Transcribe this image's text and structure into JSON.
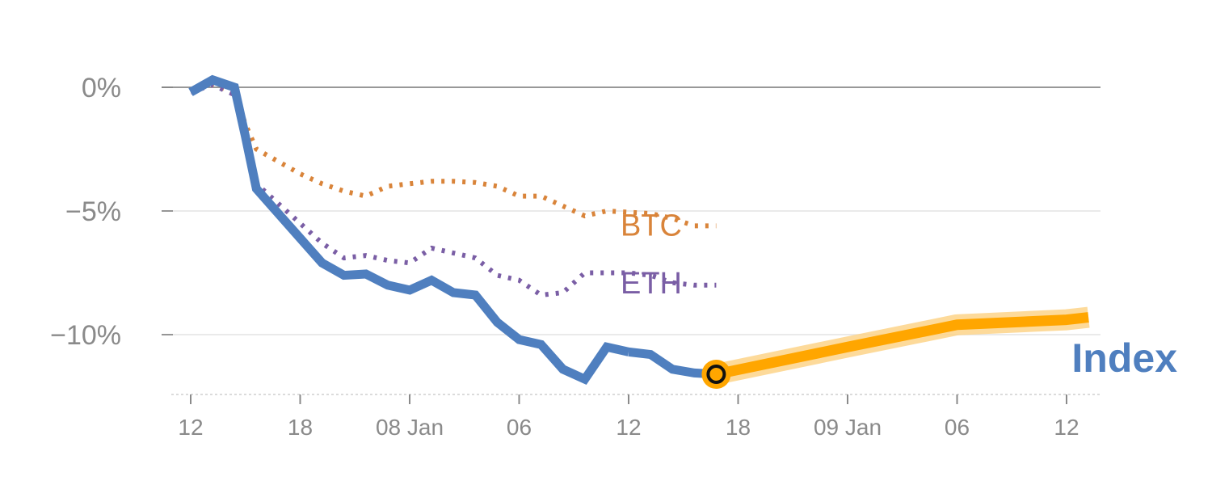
{
  "chart_data": {
    "type": "line",
    "title": "",
    "xlabel": "",
    "ylabel": "",
    "x_ticks": [
      "12",
      "18",
      "08 Jan",
      "06",
      "12",
      "18",
      "09 Jan",
      "06",
      "12"
    ],
    "x_range": [
      -0.12,
      4.8
    ],
    "y_ticks": [
      {
        "value": 0,
        "label": "0%"
      },
      {
        "value": -5,
        "label": "−5%"
      },
      {
        "value": -10,
        "label": "−10%"
      }
    ],
    "ylim": [
      -12.6,
      1.0
    ],
    "colors": {
      "index": "#4f7fbf",
      "btc": "#d9843a",
      "eth": "#7a5ea5",
      "forecast": "#ffa600",
      "forecast_band": "#fdd488",
      "axis": "#777777",
      "grid": "#e3e3e3",
      "tick_text": "#8a8a8a"
    },
    "series": [
      {
        "name": "Index",
        "label": "Index",
        "style": "solid",
        "x": [
          0,
          0.1,
          0.2,
          0.25,
          0.3,
          0.4,
          0.5,
          0.6,
          0.7,
          0.8,
          0.9,
          1.0,
          1.1,
          1.2,
          1.3,
          1.4,
          1.5,
          1.6,
          1.7,
          1.8,
          1.9,
          2.0
        ],
        "y": [
          -0.2,
          0.3,
          0.0,
          -2.0,
          -4.1,
          -5.1,
          -6.1,
          -7.1,
          -7.6,
          -7.55,
          -8.0,
          -8.2,
          -7.8,
          -8.3,
          -8.4,
          -9.5,
          -10.2,
          -10.4,
          -11.4,
          -11.8,
          -10.5,
          -10.7
        ]
      },
      {
        "name": "Index-tail",
        "style": "solid",
        "x": [
          2.0,
          2.1,
          2.2,
          2.3,
          2.4
        ],
        "y": [
          -10.7,
          -10.8,
          -11.4,
          -11.55,
          -11.6
        ]
      },
      {
        "name": "BTC",
        "label": "BTC",
        "style": "dotted",
        "x": [
          0,
          0.1,
          0.2,
          0.25,
          0.3,
          0.4,
          0.5,
          0.6,
          0.7,
          0.8,
          0.9,
          1.0,
          1.1,
          1.2,
          1.3,
          1.4,
          1.5,
          1.6,
          1.7,
          1.8,
          1.9,
          2.0,
          2.1,
          2.2,
          2.3,
          2.4
        ],
        "y": [
          -0.15,
          0.1,
          -0.2,
          -1.5,
          -2.5,
          -3.0,
          -3.5,
          -3.9,
          -4.2,
          -4.4,
          -4.0,
          -3.9,
          -3.8,
          -3.8,
          -3.85,
          -4.0,
          -4.4,
          -4.4,
          -4.8,
          -5.2,
          -5.0,
          -5.05,
          -5.1,
          -5.3,
          -5.6,
          -5.6
        ]
      },
      {
        "name": "ETH",
        "label": "ETH",
        "style": "dotted",
        "x": [
          0,
          0.1,
          0.2,
          0.25,
          0.3,
          0.4,
          0.5,
          0.6,
          0.7,
          0.8,
          0.9,
          1.0,
          1.1,
          1.2,
          1.3,
          1.4,
          1.5,
          1.6,
          1.7,
          1.8,
          1.9,
          2.0,
          2.1,
          2.2,
          2.3,
          2.4
        ],
        "y": [
          -0.2,
          0.1,
          -0.3,
          -2.0,
          -3.9,
          -4.7,
          -5.5,
          -6.3,
          -6.9,
          -6.8,
          -7.0,
          -7.1,
          -6.5,
          -6.7,
          -6.9,
          -7.6,
          -7.8,
          -8.4,
          -8.3,
          -7.5,
          -7.5,
          -7.5,
          -7.6,
          -7.9,
          -8.0,
          -8.0
        ]
      },
      {
        "name": "Forecast",
        "style": "solid-thick",
        "x": [
          2.4,
          3.0,
          3.5,
          4.0,
          4.1
        ],
        "y": [
          -11.6,
          -10.5,
          -9.6,
          -9.4,
          -9.3
        ]
      }
    ],
    "marker": {
      "series": "Index",
      "x": 2.4,
      "y": -11.6
    },
    "labels": {
      "btc": "BTC",
      "eth": "ETH",
      "index": "Index"
    }
  }
}
